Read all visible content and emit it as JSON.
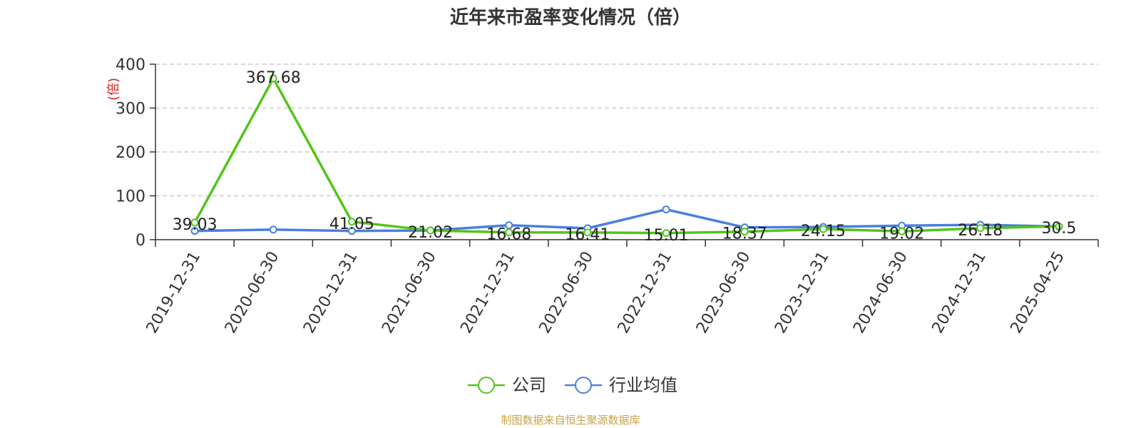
{
  "chart_data": {
    "type": "line",
    "title": "近年来市盈率变化情况（倍）",
    "ylabel": "(倍)",
    "xlabel": "",
    "categories": [
      "2019-12-31",
      "2020-06-30",
      "2020-12-31",
      "2021-06-30",
      "2021-12-31",
      "2022-06-30",
      "2022-12-31",
      "2023-06-30",
      "2023-12-31",
      "2024-06-30",
      "2024-12-31",
      "2025-04-25"
    ],
    "ylim": [
      0,
      400
    ],
    "yticks": [
      0,
      100,
      200,
      300,
      400
    ],
    "grid": true,
    "legend": "bottom-center",
    "series": [
      {
        "name": "公司",
        "color": "#52c41a",
        "labeled": true,
        "values": [
          39.03,
          367.68,
          41.05,
          21.02,
          16.68,
          16.41,
          15.01,
          18.37,
          24.15,
          19.02,
          26.18,
          30.5
        ]
      },
      {
        "name": "行业均值",
        "color": "#4a7fdc",
        "labeled": false,
        "values": [
          20,
          23,
          20,
          21,
          33,
          26,
          69,
          28,
          29,
          32,
          34,
          30
        ]
      }
    ]
  },
  "footer": {
    "text": "制图数据来自恒生聚源数据库",
    "color": "#c8a24a"
  }
}
